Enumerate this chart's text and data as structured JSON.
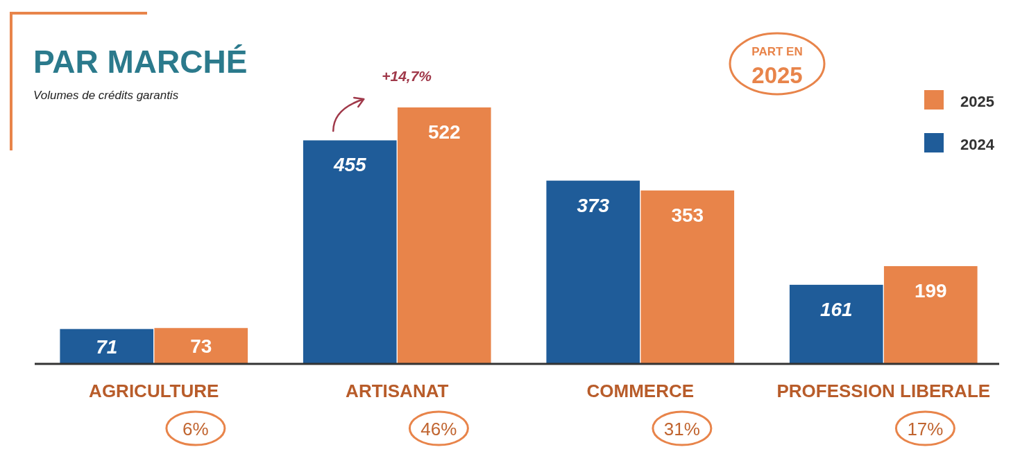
{
  "chart_data": {
    "type": "bar",
    "title": "PAR MARCHÉ",
    "subtitle": "Volumes de crédits garantis",
    "categories": [
      "AGRICULTURE",
      "ARTISANAT",
      "COMMERCE",
      "PROFESSION LIBERALE"
    ],
    "series": [
      {
        "name": "2024",
        "color": "#1f5c99",
        "values": [
          71,
          455,
          373,
          161
        ]
      },
      {
        "name": "2025",
        "color": "#e8844a",
        "values": [
          73,
          522,
          353,
          199
        ]
      }
    ],
    "data_labels": true,
    "legend": "top right",
    "annotations": [
      {
        "text": "+14,7%",
        "x": "ARTISANAT",
        "y": 522
      },
      "PART EN 2025",
      "6%",
      "46%",
      "31%",
      "17%"
    ]
  }
}
